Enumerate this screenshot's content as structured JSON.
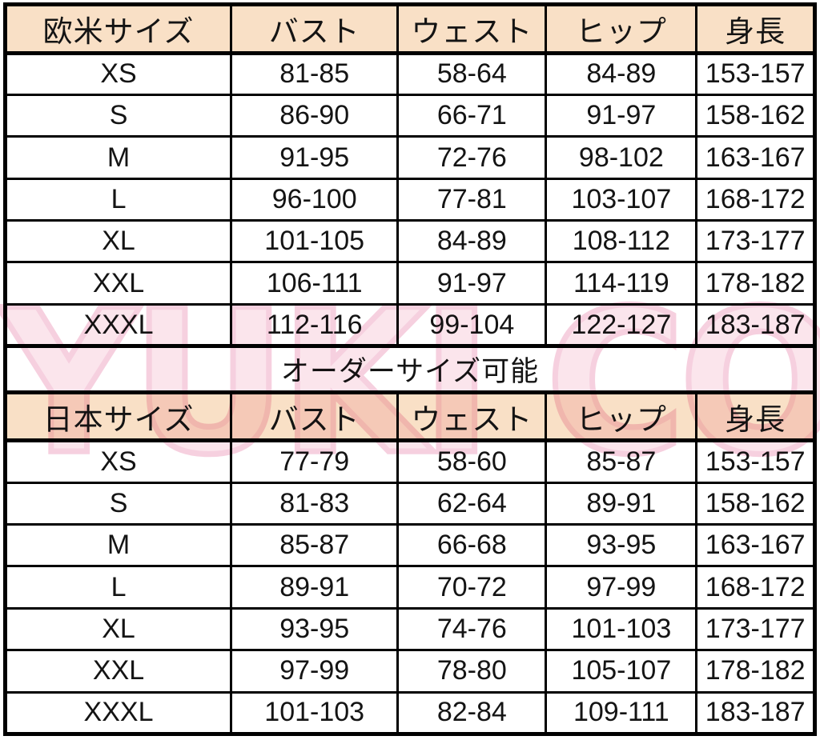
{
  "colors": {
    "page_bg": "#ffffff",
    "header_bg": "#f9e0c6",
    "border": "#000000",
    "text": "#141414",
    "watermark_pink": "#efa9c5"
  },
  "watermark": {
    "text": "YUKI COS"
  },
  "western_table": {
    "header": [
      "欧米サイズ",
      "バスト",
      "ウェスト",
      "ヒップ",
      "身長"
    ],
    "rows": [
      [
        "XS",
        "81-85",
        "58-64",
        "84-89",
        "153-157"
      ],
      [
        "S",
        "86-90",
        "66-71",
        "91-97",
        "158-162"
      ],
      [
        "M",
        "91-95",
        "72-76",
        "98-102",
        "163-167"
      ],
      [
        "L",
        "96-100",
        "77-81",
        "103-107",
        "168-172"
      ],
      [
        "XL",
        "101-105",
        "84-89",
        "108-112",
        "173-177"
      ],
      [
        "XXL",
        "106-111",
        "91-97",
        "114-119",
        "178-182"
      ],
      [
        "XXXL",
        "112-116",
        "99-104",
        "122-127",
        "183-187"
      ]
    ]
  },
  "order_row": {
    "label": "オーダーサイズ可能"
  },
  "japan_table": {
    "header": [
      "日本サイズ",
      "バスト",
      "ウェスト",
      "ヒップ",
      "身長"
    ],
    "rows": [
      [
        "XS",
        "77-79",
        "58-60",
        "85-87",
        "153-157"
      ],
      [
        "S",
        "81-83",
        "62-64",
        "89-91",
        "158-162"
      ],
      [
        "M",
        "85-87",
        "66-68",
        "93-95",
        "163-167"
      ],
      [
        "L",
        "89-91",
        "70-72",
        "97-99",
        "168-172"
      ],
      [
        "XL",
        "93-95",
        "74-76",
        "101-103",
        "173-177"
      ],
      [
        "XXL",
        "97-99",
        "78-80",
        "105-107",
        "178-182"
      ],
      [
        "XXXL",
        "101-103",
        "82-84",
        "109-111",
        "183-187"
      ]
    ]
  }
}
